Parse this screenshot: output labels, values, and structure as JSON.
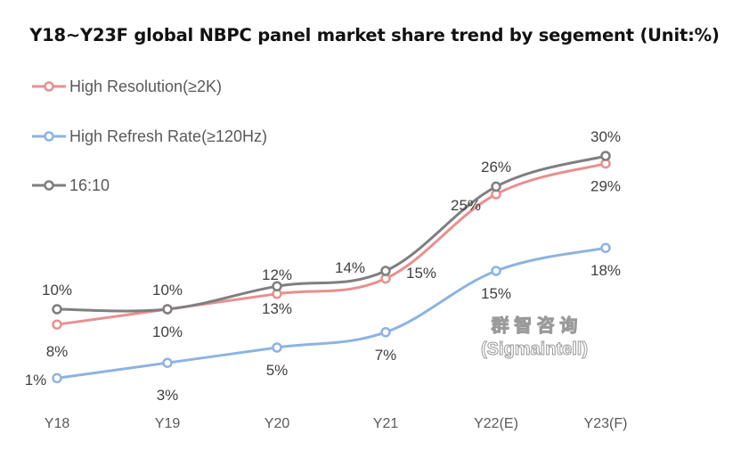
{
  "chart_data": {
    "type": "line",
    "title": "Y18~Y23F global NBPC panel market share trend by segement (Unit:%)",
    "xlabel": "",
    "ylabel": "",
    "categories": [
      "Y18",
      "Y19",
      "Y20",
      "Y21",
      "Y22(E)",
      "Y23(F)"
    ],
    "legend_position": "top-left",
    "grid": false,
    "ylim": [
      0,
      35
    ],
    "series": [
      {
        "name": "High Resolution(≥2K)",
        "color": "#e8908f",
        "values": [
          8,
          10,
          12,
          14,
          25,
          29
        ],
        "labels": [
          "8%",
          "10%",
          "12%",
          "14%",
          "25%",
          "29%"
        ],
        "label_side": [
          "below",
          "below",
          "above",
          "above",
          "below",
          "below"
        ]
      },
      {
        "name": "High Refresh Rate(≥120Hz)",
        "color": "#8db3e2",
        "values": [
          1,
          3,
          5,
          7,
          15,
          18
        ],
        "labels": [
          "1%",
          "3%",
          "5%",
          "7%",
          "15%",
          "18%"
        ],
        "label_side": [
          "above",
          "below",
          "below",
          "below",
          "below",
          "below"
        ]
      },
      {
        "name": "16:10",
        "color": "#7f7f7f",
        "values": [
          10,
          10,
          13,
          15,
          26,
          30
        ],
        "labels": [
          "10%",
          "10%",
          "13%",
          "15%",
          "26%",
          "30%"
        ],
        "label_side": [
          "above",
          "above",
          "below",
          "below",
          "above",
          "above"
        ]
      }
    ],
    "watermark": {
      "line1": "群 智 咨 询",
      "line2": "(Sigmaintell)"
    }
  }
}
